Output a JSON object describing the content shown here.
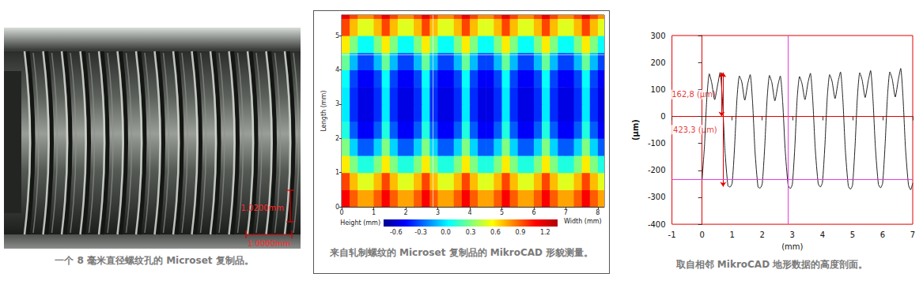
{
  "photo": {
    "caption": "一个 8 毫米直径螺纹孔的 Microset 复制品。",
    "scale_labels": [
      "1.0200mm",
      "1.0000mm"
    ]
  },
  "chart_data": [
    {
      "type": "heatmap",
      "caption": "来自轧制螺纹的 Microset 复制品的 MikroCAD 形貌测量。",
      "x_label": "Width (mm)",
      "y_label": "Length (mm)",
      "x": [
        0,
        0.25,
        0.5,
        0.75,
        1,
        1.25,
        1.5,
        1.75,
        2,
        2.25,
        2.5,
        2.75,
        3,
        3.25,
        3.5,
        3.75,
        4,
        4.25,
        4.5,
        4.75,
        5,
        5.25,
        5.5,
        5.75,
        6,
        6.25,
        6.5,
        6.75,
        7,
        7.25,
        7.5,
        7.75,
        8
      ],
      "y": [
        0,
        0.5,
        1,
        1.5,
        2,
        2.5,
        3,
        3.5,
        4,
        4.5,
        5,
        5.5
      ],
      "cells": [
        [
          1.1,
          0.9,
          0.75,
          0.75,
          0.9,
          1.1,
          0.9,
          0.75,
          0.75,
          0.9,
          1.1,
          0.9,
          0.75,
          0.75,
          0.9,
          1.1,
          0.9,
          0.75,
          0.75,
          0.9,
          1.1,
          0.9,
          0.75,
          0.75,
          0.9,
          1.1,
          0.9,
          0.75,
          0.75,
          0.9,
          1.1,
          0.9,
          0.75
        ],
        [
          0.95,
          0.7,
          0.5,
          0.5,
          0.7,
          0.95,
          0.7,
          0.5,
          0.5,
          0.7,
          0.95,
          0.7,
          0.5,
          0.5,
          0.7,
          0.95,
          0.7,
          0.5,
          0.5,
          0.7,
          0.95,
          0.7,
          0.5,
          0.5,
          0.7,
          0.95,
          0.7,
          0.5,
          0.5,
          0.7,
          0.95,
          0.7,
          0.5
        ],
        [
          0.6,
          0.3,
          0.1,
          0.1,
          0.3,
          0.6,
          0.3,
          0.1,
          0.1,
          0.3,
          0.6,
          0.3,
          0.1,
          0.1,
          0.3,
          0.6,
          0.3,
          0.1,
          0.1,
          0.3,
          0.6,
          0.3,
          0.1,
          0.1,
          0.3,
          0.6,
          0.3,
          0.1,
          0.1,
          0.3,
          0.6,
          0.3,
          0.1
        ],
        [
          0.3,
          -0.05,
          -0.3,
          -0.3,
          -0.05,
          0.3,
          -0.05,
          -0.3,
          -0.3,
          -0.05,
          0.3,
          -0.05,
          -0.3,
          -0.3,
          -0.05,
          0.3,
          -0.05,
          -0.3,
          -0.3,
          -0.05,
          0.3,
          -0.05,
          -0.3,
          -0.3,
          -0.05,
          0.3,
          -0.05,
          -0.3,
          -0.3,
          -0.05,
          0.3,
          -0.05,
          -0.3
        ],
        [
          0.1,
          -0.3,
          -0.5,
          -0.5,
          -0.3,
          0.1,
          -0.3,
          -0.5,
          -0.5,
          -0.3,
          0.1,
          -0.3,
          -0.5,
          -0.5,
          -0.3,
          0.1,
          -0.3,
          -0.5,
          -0.5,
          -0.3,
          0.1,
          -0.3,
          -0.5,
          -0.5,
          -0.3,
          0.1,
          -0.3,
          -0.5,
          -0.5,
          -0.3,
          0.1,
          -0.3,
          -0.5
        ],
        [
          0,
          -0.4,
          -0.55,
          -0.55,
          -0.4,
          0,
          -0.4,
          -0.55,
          -0.55,
          -0.4,
          0,
          -0.4,
          -0.55,
          -0.55,
          -0.4,
          0,
          -0.4,
          -0.55,
          -0.55,
          -0.4,
          0,
          -0.4,
          -0.55,
          -0.55,
          -0.4,
          0,
          -0.4,
          -0.55,
          -0.55,
          -0.4,
          0,
          -0.4,
          -0.55
        ],
        [
          0,
          -0.4,
          -0.55,
          -0.55,
          -0.4,
          0,
          -0.4,
          -0.55,
          -0.55,
          -0.4,
          0,
          -0.4,
          -0.55,
          -0.55,
          -0.4,
          0,
          -0.4,
          -0.55,
          -0.55,
          -0.4,
          0,
          -0.4,
          -0.55,
          -0.55,
          -0.4,
          0,
          -0.4,
          -0.55,
          -0.55,
          -0.4,
          0,
          -0.4,
          -0.55
        ],
        [
          0.05,
          -0.35,
          -0.5,
          -0.5,
          -0.35,
          0.05,
          -0.35,
          -0.5,
          -0.5,
          -0.35,
          0.05,
          -0.35,
          -0.5,
          -0.5,
          -0.35,
          0.05,
          -0.35,
          -0.5,
          -0.5,
          -0.35,
          0.05,
          -0.35,
          -0.5,
          -0.5,
          -0.35,
          0.05,
          -0.35,
          -0.5,
          -0.5,
          -0.35,
          0.05,
          -0.35,
          -0.5
        ],
        [
          0.25,
          -0.1,
          -0.35,
          -0.35,
          -0.1,
          0.25,
          -0.1,
          -0.35,
          -0.35,
          -0.1,
          0.25,
          -0.1,
          -0.35,
          -0.35,
          -0.1,
          0.25,
          -0.1,
          -0.35,
          -0.35,
          -0.1,
          0.25,
          -0.1,
          -0.35,
          -0.35,
          -0.1,
          0.25,
          -0.1,
          -0.35,
          -0.35,
          -0.1,
          0.25,
          -0.1,
          -0.35
        ],
        [
          0.6,
          0.3,
          0.05,
          0.05,
          0.3,
          0.6,
          0.3,
          0.05,
          0.05,
          0.3,
          0.6,
          0.3,
          0.05,
          0.05,
          0.3,
          0.6,
          0.3,
          0.05,
          0.05,
          0.3,
          0.6,
          0.3,
          0.05,
          0.05,
          0.3,
          0.6,
          0.3,
          0.05,
          0.05,
          0.3,
          0.6,
          0.3,
          0.05
        ],
        [
          0.95,
          0.7,
          0.5,
          0.5,
          0.7,
          0.95,
          0.7,
          0.5,
          0.5,
          0.7,
          0.95,
          0.7,
          0.5,
          0.5,
          0.7,
          0.95,
          0.7,
          0.5,
          0.5,
          0.7,
          0.95,
          0.7,
          0.5,
          0.5,
          0.7,
          0.95,
          0.7,
          0.5,
          0.5,
          0.7,
          0.95,
          0.7,
          0.5
        ],
        [
          1.15,
          0.95,
          0.8,
          0.8,
          0.95,
          1.15,
          0.95,
          0.8,
          0.8,
          0.95,
          1.15,
          0.95,
          0.8,
          0.8,
          0.95,
          1.15,
          0.95,
          0.8,
          0.8,
          0.95,
          1.15,
          0.95,
          0.8,
          0.8,
          0.95,
          1.15,
          0.95,
          0.8,
          0.8,
          0.95,
          1.15,
          0.95,
          0.8
        ]
      ],
      "xlim": [
        0,
        8.2
      ],
      "xticks": [
        0,
        1,
        2,
        3,
        4,
        5,
        6,
        7,
        8
      ],
      "ylim": [
        0,
        5.6
      ],
      "yticks": [
        0,
        1,
        2,
        3,
        4,
        5
      ],
      "colorbar": {
        "label": "Height (mm)",
        "range": [
          -0.75,
          1.35
        ],
        "ticks": [
          -0.6,
          -0.3,
          {
            "value": 0,
            "label": "0.0"
          },
          0.3,
          0.6,
          0.9,
          1.2
        ]
      },
      "crosshair": {
        "x": 2.85,
        "y": 4.45
      },
      "grid": false
    },
    {
      "type": "line",
      "caption": "取自相邻 MikroCAD 地形数据的高度剖面。",
      "x_label": "(mm)",
      "y_label": "(μm)",
      "color": "#222222",
      "x": [
        0,
        0.08,
        0.16,
        0.24,
        0.32,
        0.42,
        0.52,
        0.6,
        0.68,
        0.76,
        0.86,
        0.93,
        1,
        1.08,
        1.16,
        1.24,
        1.32,
        1.42,
        1.52,
        1.6,
        1.68,
        1.76,
        1.86,
        1.93,
        2,
        2.08,
        2.16,
        2.24,
        2.32,
        2.42,
        2.52,
        2.6,
        2.68,
        2.76,
        2.86,
        2.93,
        3,
        3.08,
        3.16,
        3.24,
        3.32,
        3.42,
        3.52,
        3.6,
        3.68,
        3.76,
        3.86,
        3.93,
        4,
        4.08,
        4.16,
        4.24,
        4.32,
        4.42,
        4.52,
        4.6,
        4.68,
        4.76,
        4.86,
        4.93,
        5,
        5.08,
        5.16,
        5.24,
        5.32,
        5.42,
        5.52,
        5.6,
        5.68,
        5.76,
        5.86,
        5.93,
        6,
        6.08,
        6.16,
        6.24,
        6.32,
        6.42,
        6.52,
        6.6,
        6.68,
        6.76,
        6.86,
        6.93,
        7
      ],
      "values": [
        -235,
        -110,
        70,
        158,
        125,
        62,
        118,
        163,
        55,
        -125,
        -258,
        -262,
        -248,
        -115,
        65,
        150,
        128,
        60,
        122,
        155,
        50,
        -130,
        -262,
        -266,
        -250,
        -118,
        62,
        152,
        125,
        58,
        115,
        150,
        52,
        -120,
        -255,
        -268,
        -252,
        -120,
        66,
        148,
        122,
        62,
        125,
        160,
        58,
        -118,
        -250,
        -262,
        -245,
        -112,
        70,
        155,
        130,
        66,
        128,
        165,
        60,
        -122,
        -258,
        -270,
        -255,
        -118,
        68,
        162,
        135,
        70,
        130,
        170,
        62,
        -115,
        -252,
        -265,
        -248,
        -110,
        72,
        165,
        138,
        72,
        135,
        178,
        65,
        -118,
        -255,
        -272,
        -248
      ],
      "xlim": [
        -1,
        7
      ],
      "xticks": [
        -1,
        0,
        1,
        2,
        3,
        4,
        5,
        6,
        7
      ],
      "ylim": [
        -400,
        300
      ],
      "yticks": [
        -400,
        -300,
        -200,
        -100,
        0,
        100,
        200,
        300
      ],
      "annotations": [
        {
          "text": "162,8 (μm)",
          "value": 162.8,
          "x": 0.65
        },
        {
          "text": "423,3 (μm)",
          "value": 423.3,
          "x": 0.7
        }
      ],
      "crosshair": {
        "x": 2.85,
        "y": -235
      },
      "grid": false
    }
  ]
}
